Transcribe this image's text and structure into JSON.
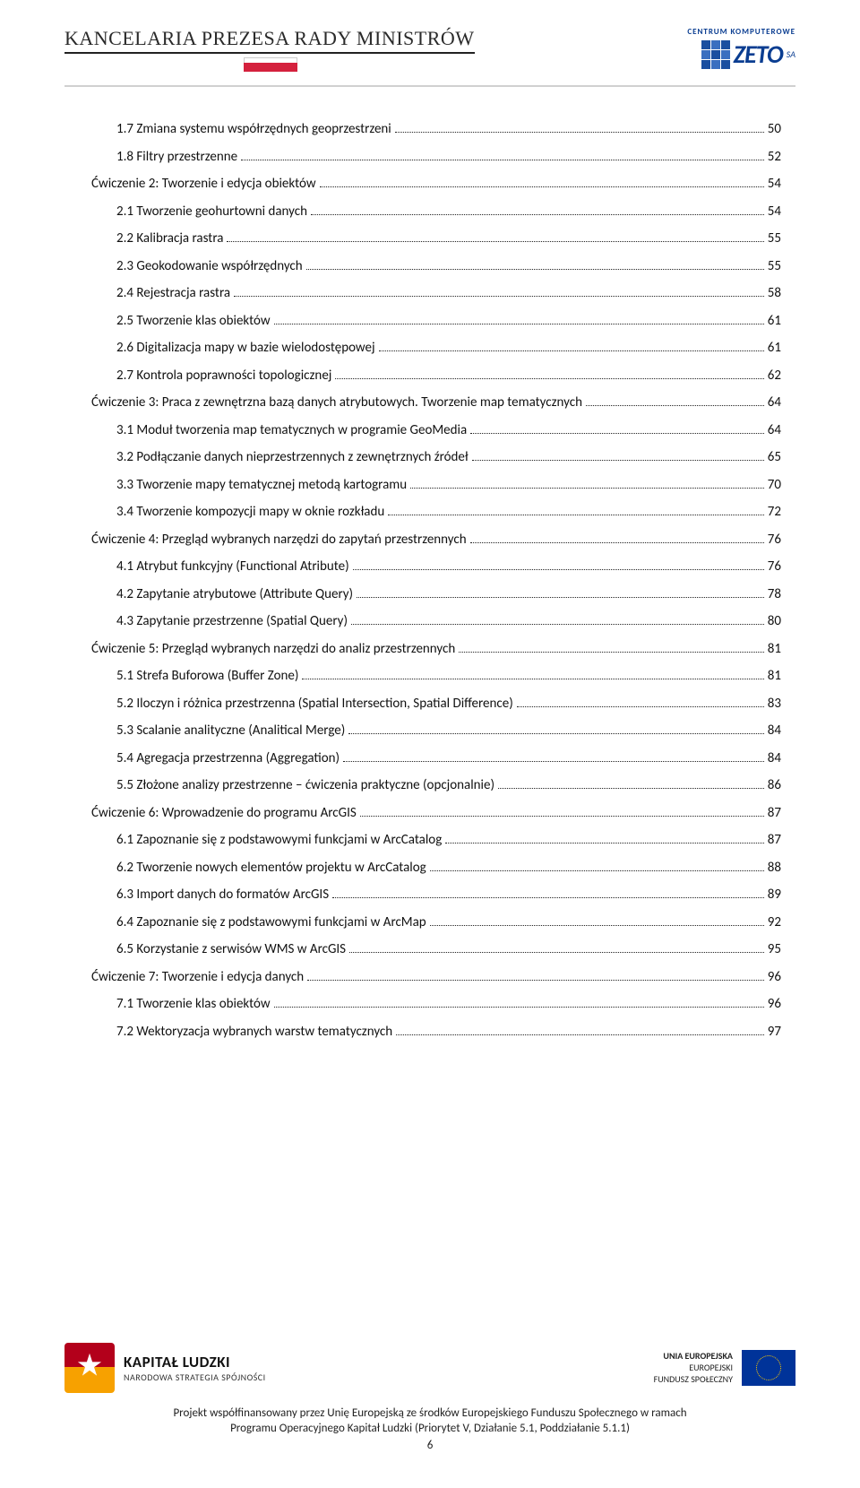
{
  "header": {
    "org_name": "KANCELARIA PREZESA RADY MINISTRÓW",
    "partner_top": "CENTRUM KOMPUTEROWE",
    "partner_name": "ZETO",
    "partner_suffix": "SA"
  },
  "toc": [
    {
      "lvl": 2,
      "label": "1.7 Zmiana systemu współrzędnych geoprzestrzeni",
      "page": "50"
    },
    {
      "lvl": 2,
      "label": "1.8 Filtry przestrzenne",
      "page": "52"
    },
    {
      "lvl": 1,
      "label": "Ćwiczenie 2: Tworzenie i edycja obiektów",
      "page": "54"
    },
    {
      "lvl": 2,
      "label": "2.1 Tworzenie geohurtowni danych",
      "page": "54"
    },
    {
      "lvl": 2,
      "label": "2.2 Kalibracja rastra",
      "page": "55"
    },
    {
      "lvl": 2,
      "label": "2.3 Geokodowanie współrzędnych",
      "page": "55"
    },
    {
      "lvl": 2,
      "label": "2.4 Rejestracja rastra",
      "page": "58"
    },
    {
      "lvl": 2,
      "label": "2.5 Tworzenie klas obiektów",
      "page": "61"
    },
    {
      "lvl": 2,
      "label": "2.6 Digitalizacja mapy w bazie wielodostępowej",
      "page": "61"
    },
    {
      "lvl": 2,
      "label": "2.7 Kontrola poprawności topologicznej",
      "page": "62"
    },
    {
      "lvl": 1,
      "label": "Ćwiczenie 3: Praca z zewnętrzna bazą danych atrybutowych. Tworzenie map tematycznych",
      "page": "64"
    },
    {
      "lvl": 2,
      "label": "3.1 Moduł tworzenia map tematycznych w programie GeoMedia",
      "page": "64"
    },
    {
      "lvl": 2,
      "label": "3.2 Podłączanie danych nieprzestrzennych z zewnętrznych źródeł",
      "page": "65"
    },
    {
      "lvl": 2,
      "label": "3.3 Tworzenie mapy tematycznej metodą kartogramu",
      "page": "70"
    },
    {
      "lvl": 2,
      "label": "3.4 Tworzenie kompozycji mapy w oknie rozkładu",
      "page": "72"
    },
    {
      "lvl": 1,
      "label": "Ćwiczenie 4: Przegląd wybranych narzędzi do zapytań przestrzennych",
      "page": "76"
    },
    {
      "lvl": 2,
      "label": "4.1 Atrybut funkcyjny (Functional Atribute)",
      "page": "76"
    },
    {
      "lvl": 2,
      "label": "4.2 Zapytanie atrybutowe (Attribute Query)",
      "page": "78"
    },
    {
      "lvl": 2,
      "label": "4.3 Zapytanie przestrzenne (Spatial Query)",
      "page": "80"
    },
    {
      "lvl": 1,
      "label": "Ćwiczenie 5: Przegląd wybranych narzędzi do analiz przestrzennych",
      "page": "81"
    },
    {
      "lvl": 2,
      "label": "5.1 Strefa Buforowa (Buffer Zone)",
      "page": "81"
    },
    {
      "lvl": 2,
      "label": "5.2 Iloczyn i różnica przestrzenna (Spatial Intersection, Spatial Difference)",
      "page": "83"
    },
    {
      "lvl": 2,
      "label": "5.3 Scalanie analityczne (Analitical Merge)",
      "page": "84"
    },
    {
      "lvl": 2,
      "label": "5.4 Agregacja przestrzenna (Aggregation)",
      "page": "84"
    },
    {
      "lvl": 2,
      "label": "5.5 Złożone analizy przestrzenne – ćwiczenia praktyczne (opcjonalnie)",
      "page": "86"
    },
    {
      "lvl": 1,
      "label": "Ćwiczenie 6: Wprowadzenie do programu ArcGIS",
      "page": "87"
    },
    {
      "lvl": 2,
      "label": "6.1 Zapoznanie się z podstawowymi funkcjami w ArcCatalog",
      "page": "87"
    },
    {
      "lvl": 2,
      "label": "6.2 Tworzenie nowych elementów projektu w ArcCatalog",
      "page": "88"
    },
    {
      "lvl": 2,
      "label": "6.3 Import danych do formatów ArcGIS",
      "page": "89"
    },
    {
      "lvl": 2,
      "label": "6.4 Zapoznanie się z podstawowymi funkcjami w ArcMap",
      "page": "92"
    },
    {
      "lvl": 2,
      "label": "6.5 Korzystanie z serwisów WMS w ArcGIS",
      "page": "95"
    },
    {
      "lvl": 1,
      "label": "Ćwiczenie 7: Tworzenie i edycja danych",
      "page": "96"
    },
    {
      "lvl": 2,
      "label": "7.1 Tworzenie klas obiektów",
      "page": "96"
    },
    {
      "lvl": 2,
      "label": "7.2 Wektoryzacja wybranych warstw tematycznych",
      "page": "97"
    }
  ],
  "footer": {
    "kapital_l1": "KAPITAŁ LUDZKI",
    "kapital_l2": "NARODOWA STRATEGIA SPÓJNOŚCI",
    "eu_l1": "UNIA EUROPEJSKA",
    "eu_l2": "EUROPEJSKI",
    "eu_l3": "FUNDUSZ SPOŁECZNY",
    "line1": "Projekt współfinansowany przez Unię Europejską ze środków Europejskiego Funduszu Społecznego w ramach",
    "line2": "Programu Operacyjnego Kapitał Ludzki (Priorytet V, Działanie 5.1, Poddziałanie 5.1.1)",
    "pagenum": "6"
  }
}
